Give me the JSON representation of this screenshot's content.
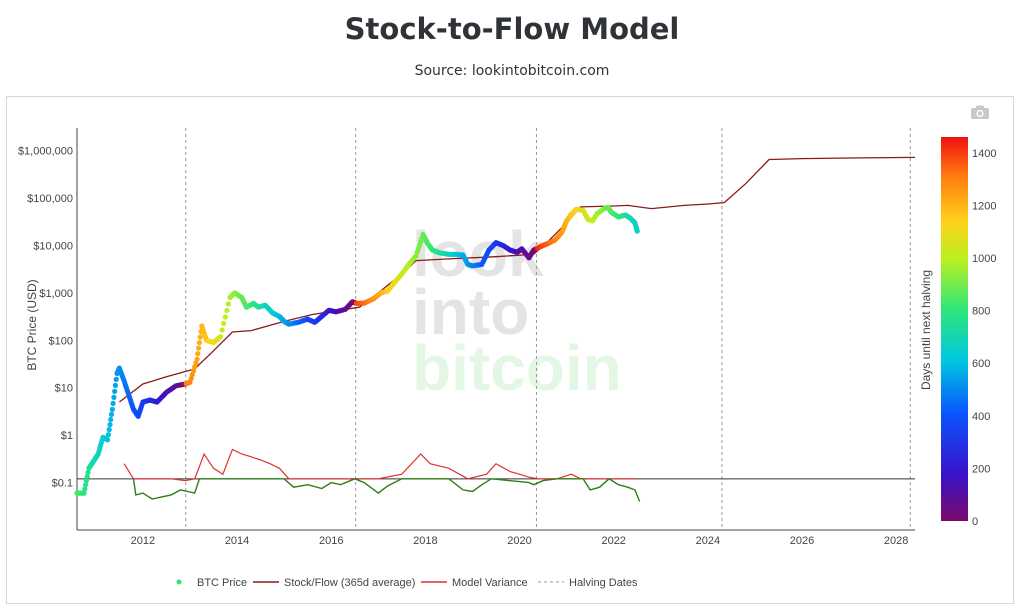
{
  "title": "Stock-to-Flow Model",
  "subtitle": "Source: lookintobitcoin.com",
  "toolbar": {
    "camera_icon": "camera-icon"
  },
  "watermark": {
    "line1": "look",
    "line2": "into",
    "line3": "bitcoin"
  },
  "chart_data": {
    "type": "line",
    "title": "Stock-to-Flow Model",
    "ylabel": "BTC Price (USD)",
    "yscale": "log",
    "xlim": [
      2010.6,
      2028.4
    ],
    "ylim": [
      0.01,
      3000000
    ],
    "x_ticks": [
      {
        "v": 2012,
        "label": "2012"
      },
      {
        "v": 2014,
        "label": "2014"
      },
      {
        "v": 2016,
        "label": "2016"
      },
      {
        "v": 2018,
        "label": "2018"
      },
      {
        "v": 2020,
        "label": "2020"
      },
      {
        "v": 2022,
        "label": "2022"
      },
      {
        "v": 2024,
        "label": "2024"
      },
      {
        "v": 2026,
        "label": "2026"
      },
      {
        "v": 2028,
        "label": "2028"
      }
    ],
    "y_ticks": [
      {
        "v": 0.1,
        "label": "$0.1"
      },
      {
        "v": 1,
        "label": "$1"
      },
      {
        "v": 10,
        "label": "$10"
      },
      {
        "v": 100,
        "label": "$100"
      },
      {
        "v": 1000,
        "label": "$1,000"
      },
      {
        "v": 10000,
        "label": "$10,000"
      },
      {
        "v": 100000,
        "label": "$100,000"
      },
      {
        "v": 1000000,
        "label": "$1,000,000"
      }
    ],
    "halving_dates": [
      2012.91,
      2016.52,
      2020.36,
      2024.3,
      2028.3
    ],
    "variance_baseline": 0.12,
    "colorbar": {
      "title": "Days until next halving",
      "min": 0,
      "max": 1460,
      "ticks": [
        {
          "v": 0,
          "label": "0"
        },
        {
          "v": 200,
          "label": "200"
        },
        {
          "v": 400,
          "label": "400"
        },
        {
          "v": 600,
          "label": "600"
        },
        {
          "v": 800,
          "label": "800"
        },
        {
          "v": 1000,
          "label": "1000"
        },
        {
          "v": 1200,
          "label": "1200"
        },
        {
          "v": 1400,
          "label": "1400"
        }
      ]
    },
    "series": [
      {
        "name": "BTC Price",
        "kind": "markers",
        "points": [
          [
            2010.6,
            0.06
          ],
          [
            2010.75,
            0.06
          ],
          [
            2010.85,
            0.2
          ],
          [
            2010.95,
            0.28
          ],
          [
            2011.05,
            0.4
          ],
          [
            2011.15,
            0.9
          ],
          [
            2011.25,
            0.8
          ],
          [
            2011.35,
            3.5
          ],
          [
            2011.45,
            20
          ],
          [
            2011.5,
            26
          ],
          [
            2011.6,
            14
          ],
          [
            2011.7,
            7
          ],
          [
            2011.8,
            3.5
          ],
          [
            2011.9,
            2.5
          ],
          [
            2012.0,
            5
          ],
          [
            2012.15,
            5.5
          ],
          [
            2012.3,
            5
          ],
          [
            2012.5,
            8
          ],
          [
            2012.7,
            11
          ],
          [
            2012.9,
            12
          ],
          [
            2013.0,
            13
          ],
          [
            2013.15,
            40
          ],
          [
            2013.25,
            200
          ],
          [
            2013.35,
            100
          ],
          [
            2013.5,
            90
          ],
          [
            2013.65,
            120
          ],
          [
            2013.85,
            800
          ],
          [
            2013.95,
            1000
          ],
          [
            2014.1,
            800
          ],
          [
            2014.2,
            500
          ],
          [
            2014.35,
            600
          ],
          [
            2014.45,
            500
          ],
          [
            2014.6,
            550
          ],
          [
            2014.75,
            380
          ],
          [
            2014.9,
            320
          ],
          [
            2015.0,
            250
          ],
          [
            2015.1,
            220
          ],
          [
            2015.3,
            240
          ],
          [
            2015.5,
            280
          ],
          [
            2015.65,
            240
          ],
          [
            2015.8,
            320
          ],
          [
            2015.95,
            430
          ],
          [
            2016.1,
            400
          ],
          [
            2016.3,
            450
          ],
          [
            2016.45,
            650
          ],
          [
            2016.55,
            600
          ],
          [
            2016.7,
            610
          ],
          [
            2016.9,
            750
          ],
          [
            2017.05,
            1000
          ],
          [
            2017.2,
            1100
          ],
          [
            2017.35,
            1700
          ],
          [
            2017.5,
            2500
          ],
          [
            2017.65,
            4000
          ],
          [
            2017.8,
            6000
          ],
          [
            2017.95,
            17000
          ],
          [
            2018.05,
            11000
          ],
          [
            2018.15,
            8000
          ],
          [
            2018.3,
            7000
          ],
          [
            2018.5,
            6500
          ],
          [
            2018.65,
            6500
          ],
          [
            2018.8,
            6300
          ],
          [
            2018.9,
            4000
          ],
          [
            2019.0,
            3700
          ],
          [
            2019.2,
            4000
          ],
          [
            2019.35,
            8000
          ],
          [
            2019.5,
            11500
          ],
          [
            2019.65,
            10000
          ],
          [
            2019.8,
            8000
          ],
          [
            2019.95,
            7200
          ],
          [
            2020.05,
            8500
          ],
          [
            2020.2,
            5500
          ],
          [
            2020.3,
            8000
          ],
          [
            2020.45,
            9500
          ],
          [
            2020.6,
            11000
          ],
          [
            2020.75,
            13000
          ],
          [
            2020.9,
            19000
          ],
          [
            2021.0,
            33000
          ],
          [
            2021.1,
            45000
          ],
          [
            2021.2,
            58000
          ],
          [
            2021.35,
            55000
          ],
          [
            2021.45,
            36000
          ],
          [
            2021.55,
            33000
          ],
          [
            2021.65,
            47000
          ],
          [
            2021.8,
            60000
          ],
          [
            2021.88,
            64000
          ],
          [
            2021.95,
            50000
          ],
          [
            2022.1,
            40000
          ],
          [
            2022.25,
            44000
          ],
          [
            2022.35,
            38000
          ],
          [
            2022.45,
            30000
          ],
          [
            2022.5,
            20000
          ]
        ]
      },
      {
        "name": "Stock/Flow (365d average)",
        "kind": "line",
        "color": "#8b1a1a",
        "points": [
          [
            2011.5,
            5
          ],
          [
            2012.0,
            12
          ],
          [
            2012.5,
            17
          ],
          [
            2012.9,
            22
          ],
          [
            2013.1,
            25
          ],
          [
            2013.5,
            60
          ],
          [
            2013.9,
            150
          ],
          [
            2014.3,
            160
          ],
          [
            2015.0,
            250
          ],
          [
            2015.6,
            350
          ],
          [
            2016.3,
            450
          ],
          [
            2016.6,
            500
          ],
          [
            2017.0,
            1000
          ],
          [
            2017.5,
            2500
          ],
          [
            2017.8,
            4800
          ],
          [
            2018.5,
            5200
          ],
          [
            2019.5,
            5800
          ],
          [
            2020.3,
            6500
          ],
          [
            2020.6,
            12000
          ],
          [
            2021.0,
            30000
          ],
          [
            2021.3,
            65000
          ],
          [
            2022.0,
            68000
          ],
          [
            2022.3,
            70000
          ],
          [
            2022.8,
            60000
          ],
          [
            2023.5,
            70000
          ],
          [
            2024.0,
            75000
          ],
          [
            2024.35,
            80000
          ],
          [
            2024.8,
            200000
          ],
          [
            2025.3,
            650000
          ],
          [
            2026.0,
            680000
          ],
          [
            2027.0,
            700000
          ],
          [
            2028.4,
            720000
          ]
        ]
      },
      {
        "name": "Model Variance",
        "kind": "line",
        "color": "#e03131",
        "points": [
          [
            2011.6,
            0.25
          ],
          [
            2011.8,
            0.12
          ],
          [
            2012.0,
            0.12
          ],
          [
            2012.3,
            0.12
          ],
          [
            2012.6,
            0.12
          ],
          [
            2012.9,
            0.11
          ],
          [
            2013.1,
            0.12
          ],
          [
            2013.3,
            0.4
          ],
          [
            2013.5,
            0.2
          ],
          [
            2013.7,
            0.15
          ],
          [
            2013.9,
            0.5
          ],
          [
            2014.1,
            0.4
          ],
          [
            2014.3,
            0.35
          ],
          [
            2014.5,
            0.3
          ],
          [
            2014.7,
            0.25
          ],
          [
            2014.9,
            0.2
          ],
          [
            2015.1,
            0.12
          ],
          [
            2015.5,
            0.12
          ],
          [
            2016.0,
            0.12
          ],
          [
            2016.5,
            0.12
          ],
          [
            2017.0,
            0.12
          ],
          [
            2017.5,
            0.15
          ],
          [
            2017.9,
            0.4
          ],
          [
            2018.1,
            0.25
          ],
          [
            2018.5,
            0.2
          ],
          [
            2018.9,
            0.12
          ],
          [
            2019.3,
            0.15
          ],
          [
            2019.5,
            0.25
          ],
          [
            2019.8,
            0.17
          ],
          [
            2020.0,
            0.15
          ],
          [
            2020.2,
            0.13
          ],
          [
            2020.4,
            0.12
          ],
          [
            2020.8,
            0.12
          ],
          [
            2021.1,
            0.15
          ],
          [
            2021.3,
            0.12
          ],
          [
            2021.6,
            0.12
          ],
          [
            2022.0,
            0.12
          ],
          [
            2022.5,
            0.12
          ]
        ],
        "below_color": "#2f7d1a",
        "below_points": [
          [
            2011.8,
            0.12
          ],
          [
            2011.85,
            0.055
          ],
          [
            2012.0,
            0.06
          ],
          [
            2012.2,
            0.045
          ],
          [
            2012.4,
            0.05
          ],
          [
            2012.6,
            0.055
          ],
          [
            2012.8,
            0.07
          ],
          [
            2012.95,
            0.065
          ],
          [
            2013.1,
            0.06
          ],
          [
            2013.2,
            0.12
          ],
          [
            2014.2,
            0.12
          ],
          [
            2015.0,
            0.12
          ],
          [
            2015.2,
            0.08
          ],
          [
            2015.5,
            0.09
          ],
          [
            2015.8,
            0.075
          ],
          [
            2016.0,
            0.1
          ],
          [
            2016.2,
            0.09
          ],
          [
            2016.5,
            0.12
          ],
          [
            2016.7,
            0.1
          ],
          [
            2017.0,
            0.06
          ],
          [
            2017.2,
            0.085
          ],
          [
            2017.5,
            0.12
          ],
          [
            2018.5,
            0.12
          ],
          [
            2018.8,
            0.07
          ],
          [
            2019.0,
            0.065
          ],
          [
            2019.2,
            0.09
          ],
          [
            2019.4,
            0.12
          ],
          [
            2020.2,
            0.1
          ],
          [
            2020.3,
            0.09
          ],
          [
            2020.5,
            0.11
          ],
          [
            2020.8,
            0.12
          ],
          [
            2021.35,
            0.12
          ],
          [
            2021.5,
            0.07
          ],
          [
            2021.7,
            0.08
          ],
          [
            2021.9,
            0.12
          ],
          [
            2022.1,
            0.09
          ],
          [
            2022.3,
            0.08
          ],
          [
            2022.45,
            0.07
          ],
          [
            2022.55,
            0.04
          ]
        ]
      },
      {
        "name": "Halving Dates",
        "kind": "vlines",
        "color": "#999999"
      }
    ],
    "legend_position": "bottom-center"
  }
}
